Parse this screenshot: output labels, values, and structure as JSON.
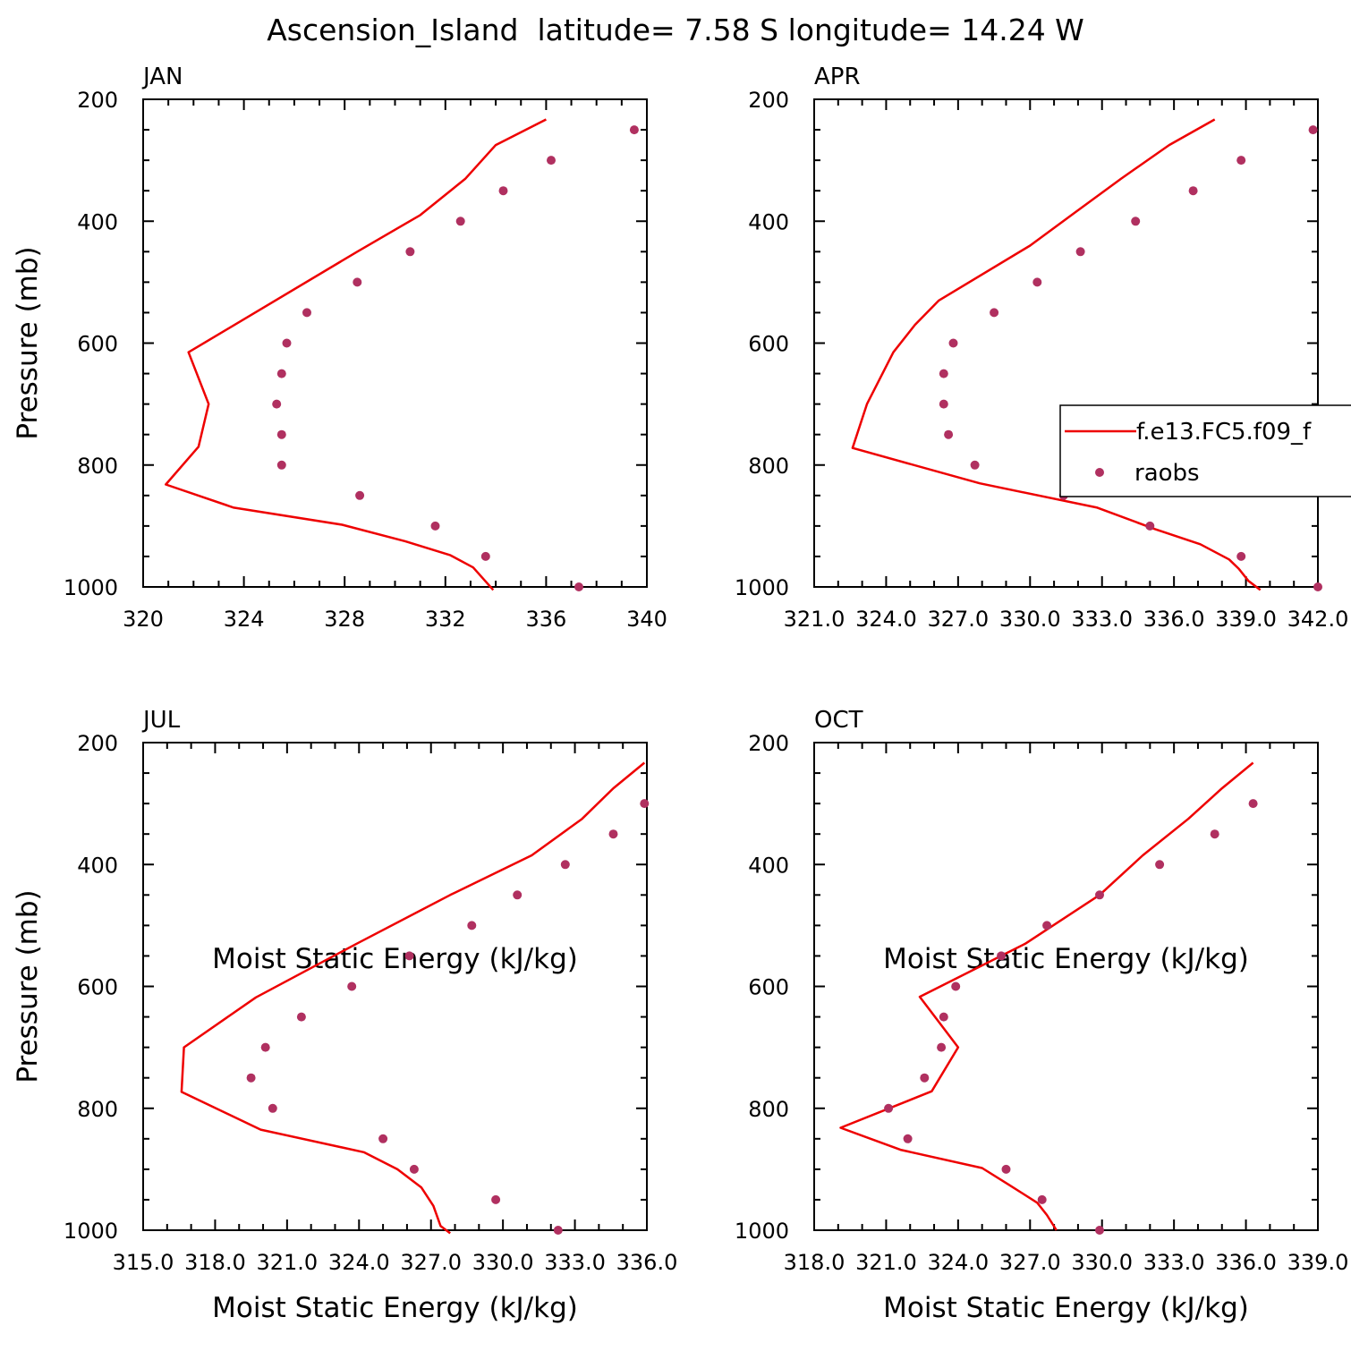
{
  "figure": {
    "title": "Ascension_Island  latitude= 7.58 S longitude= 14.24 W",
    "colors": {
      "model": "#ee0000",
      "obs": "#b03060",
      "axis": "#000000"
    }
  },
  "chart_data": [
    {
      "type": "line",
      "panel": "JAN",
      "xlabel": "Moist Static Energy (kJ/kg)",
      "ylabel": "Pressure (mb)",
      "xlim": [
        320,
        340
      ],
      "ylim": [
        1000,
        200
      ],
      "xticks": [
        "320",
        "324",
        "328",
        "332",
        "336",
        "340"
      ],
      "yticks": [
        "200",
        "400",
        "600",
        "800",
        "1000"
      ],
      "series": [
        {
          "name": "f.e13.FC5.f09_f",
          "kind": "line",
          "points": [
            [
              336,
              233
            ],
            [
              334,
              275
            ],
            [
              332.8,
              330
            ],
            [
              331,
              390
            ],
            [
              328.5,
              450
            ],
            [
              321.8,
              615
            ],
            [
              322.6,
              700
            ],
            [
              322.2,
              770
            ],
            [
              320.9,
              832
            ],
            [
              323.6,
              870
            ],
            [
              327.9,
              898
            ],
            [
              330.4,
              925
            ],
            [
              332.2,
              948
            ],
            [
              333.1,
              968
            ],
            [
              333.9,
              1005
            ]
          ]
        },
        {
          "name": "raobs",
          "kind": "scatter",
          "points": [
            [
              339.5,
              250
            ],
            [
              336.2,
              300
            ],
            [
              334.3,
              350
            ],
            [
              332.6,
              400
            ],
            [
              330.6,
              450
            ],
            [
              328.5,
              500
            ],
            [
              326.5,
              550
            ],
            [
              325.7,
              600
            ],
            [
              325.5,
              650
            ],
            [
              325.3,
              700
            ],
            [
              325.5,
              750
            ],
            [
              325.5,
              800
            ],
            [
              328.6,
              850
            ],
            [
              331.6,
              900
            ],
            [
              333.6,
              950
            ],
            [
              337.3,
              1000
            ]
          ]
        }
      ]
    },
    {
      "type": "line",
      "panel": "APR",
      "xlabel": "Moist Static Energy (kJ/kg)",
      "ylabel": "",
      "xlim": [
        321,
        342
      ],
      "ylim": [
        1000,
        200
      ],
      "xticks": [
        "321.0",
        "324.0",
        "327.0",
        "330.0",
        "333.0",
        "336.0",
        "339.0",
        "342.0"
      ],
      "yticks": [
        "200",
        "400",
        "600",
        "800",
        "1000"
      ],
      "series": [
        {
          "name": "f.e13.FC5.f09_f",
          "kind": "line",
          "points": [
            [
              337.7,
              233
            ],
            [
              335.8,
              275
            ],
            [
              333.8,
              330
            ],
            [
              331.9,
              385
            ],
            [
              330,
              440
            ],
            [
              326.2,
              530
            ],
            [
              325.2,
              570
            ],
            [
              324.3,
              615
            ],
            [
              323.2,
              700
            ],
            [
              322.6,
              772
            ],
            [
              327.9,
              830
            ],
            [
              332.8,
              870
            ],
            [
              335.2,
              905
            ],
            [
              337.1,
              930
            ],
            [
              338.3,
              955
            ],
            [
              338.7,
              970
            ],
            [
              339.1,
              990
            ],
            [
              339.6,
              1005
            ]
          ]
        },
        {
          "name": "raobs",
          "kind": "scatter",
          "points": [
            [
              341.8,
              250
            ],
            [
              338.8,
              300
            ],
            [
              336.8,
              350
            ],
            [
              334.4,
              400
            ],
            [
              332.1,
              450
            ],
            [
              330.3,
              500
            ],
            [
              328.5,
              550
            ],
            [
              326.8,
              600
            ],
            [
              326.4,
              650
            ],
            [
              326.4,
              700
            ],
            [
              326.6,
              750
            ],
            [
              327.7,
              800
            ],
            [
              331.4,
              850
            ],
            [
              335,
              900
            ],
            [
              338.8,
              950
            ],
            [
              342,
              1000
            ]
          ]
        }
      ],
      "legend": {
        "placement": "middle-right",
        "entries": [
          {
            "label": "f.e13.FC5.f09_f",
            "kind": "line"
          },
          {
            "label": "raobs",
            "kind": "marker"
          }
        ]
      }
    },
    {
      "type": "line",
      "panel": "JUL",
      "xlabel": "Moist Static Energy (kJ/kg)",
      "ylabel": "Pressure (mb)",
      "xlim": [
        315,
        336
      ],
      "ylim": [
        1000,
        200
      ],
      "xticks": [
        "315.0",
        "318.0",
        "321.0",
        "324.0",
        "327.0",
        "330.0",
        "333.0",
        "336.0"
      ],
      "yticks": [
        "200",
        "400",
        "600",
        "800",
        "1000"
      ],
      "series": [
        {
          "name": "f.e13.FC5.f09_f",
          "kind": "line",
          "points": [
            [
              335.9,
              233
            ],
            [
              334.6,
              275
            ],
            [
              333.3,
              325
            ],
            [
              331.2,
              385
            ],
            [
              327.8,
              450
            ],
            [
              323.9,
              530
            ],
            [
              319.7,
              618
            ],
            [
              316.7,
              700
            ],
            [
              316.6,
              773
            ],
            [
              319.9,
              835
            ],
            [
              324.2,
              872
            ],
            [
              325.6,
              900
            ],
            [
              326.6,
              930
            ],
            [
              327.1,
              960
            ],
            [
              327.4,
              993
            ],
            [
              327.8,
              1005
            ]
          ]
        },
        {
          "name": "raobs",
          "kind": "scatter",
          "points": [
            [
              335.9,
              300
            ],
            [
              334.6,
              350
            ],
            [
              332.6,
              400
            ],
            [
              330.6,
              450
            ],
            [
              328.7,
              500
            ],
            [
              326.1,
              550
            ],
            [
              323.7,
              600
            ],
            [
              321.6,
              650
            ],
            [
              320.1,
              700
            ],
            [
              319.5,
              750
            ],
            [
              320.4,
              800
            ],
            [
              325,
              850
            ],
            [
              326.3,
              900
            ],
            [
              329.7,
              950
            ],
            [
              332.3,
              1000
            ]
          ]
        }
      ]
    },
    {
      "type": "line",
      "panel": "OCT",
      "xlabel": "Moist Static Energy (kJ/kg)",
      "ylabel": "",
      "xlim": [
        318,
        339
      ],
      "ylim": [
        1000,
        200
      ],
      "xticks": [
        "318.0",
        "321.0",
        "324.0",
        "327.0",
        "330.0",
        "333.0",
        "336.0",
        "339.0"
      ],
      "yticks": [
        "200",
        "400",
        "600",
        "800",
        "1000"
      ],
      "series": [
        {
          "name": "f.e13.FC5.f09_f",
          "kind": "line",
          "points": [
            [
              336.3,
              233
            ],
            [
              335,
              275
            ],
            [
              333.6,
              325
            ],
            [
              331.7,
              385
            ],
            [
              329.9,
              450
            ],
            [
              326.8,
              530
            ],
            [
              322.4,
              617
            ],
            [
              324,
              700
            ],
            [
              322.9,
              772
            ],
            [
              319.1,
              832
            ],
            [
              321.6,
              868
            ],
            [
              325,
              898
            ],
            [
              326.1,
              925
            ],
            [
              327.3,
              955
            ],
            [
              327.7,
              975
            ],
            [
              328.1,
              1000
            ]
          ]
        },
        {
          "name": "raobs",
          "kind": "scatter",
          "points": [
            [
              336.3,
              300
            ],
            [
              334.7,
              350
            ],
            [
              332.4,
              400
            ],
            [
              329.9,
              450
            ],
            [
              327.7,
              500
            ],
            [
              325.8,
              550
            ],
            [
              323.9,
              600
            ],
            [
              323.4,
              650
            ],
            [
              323.3,
              700
            ],
            [
              322.6,
              750
            ],
            [
              321.1,
              800
            ],
            [
              321.9,
              850
            ],
            [
              326,
              900
            ],
            [
              327.5,
              950
            ],
            [
              329.9,
              1000
            ]
          ]
        }
      ]
    }
  ]
}
